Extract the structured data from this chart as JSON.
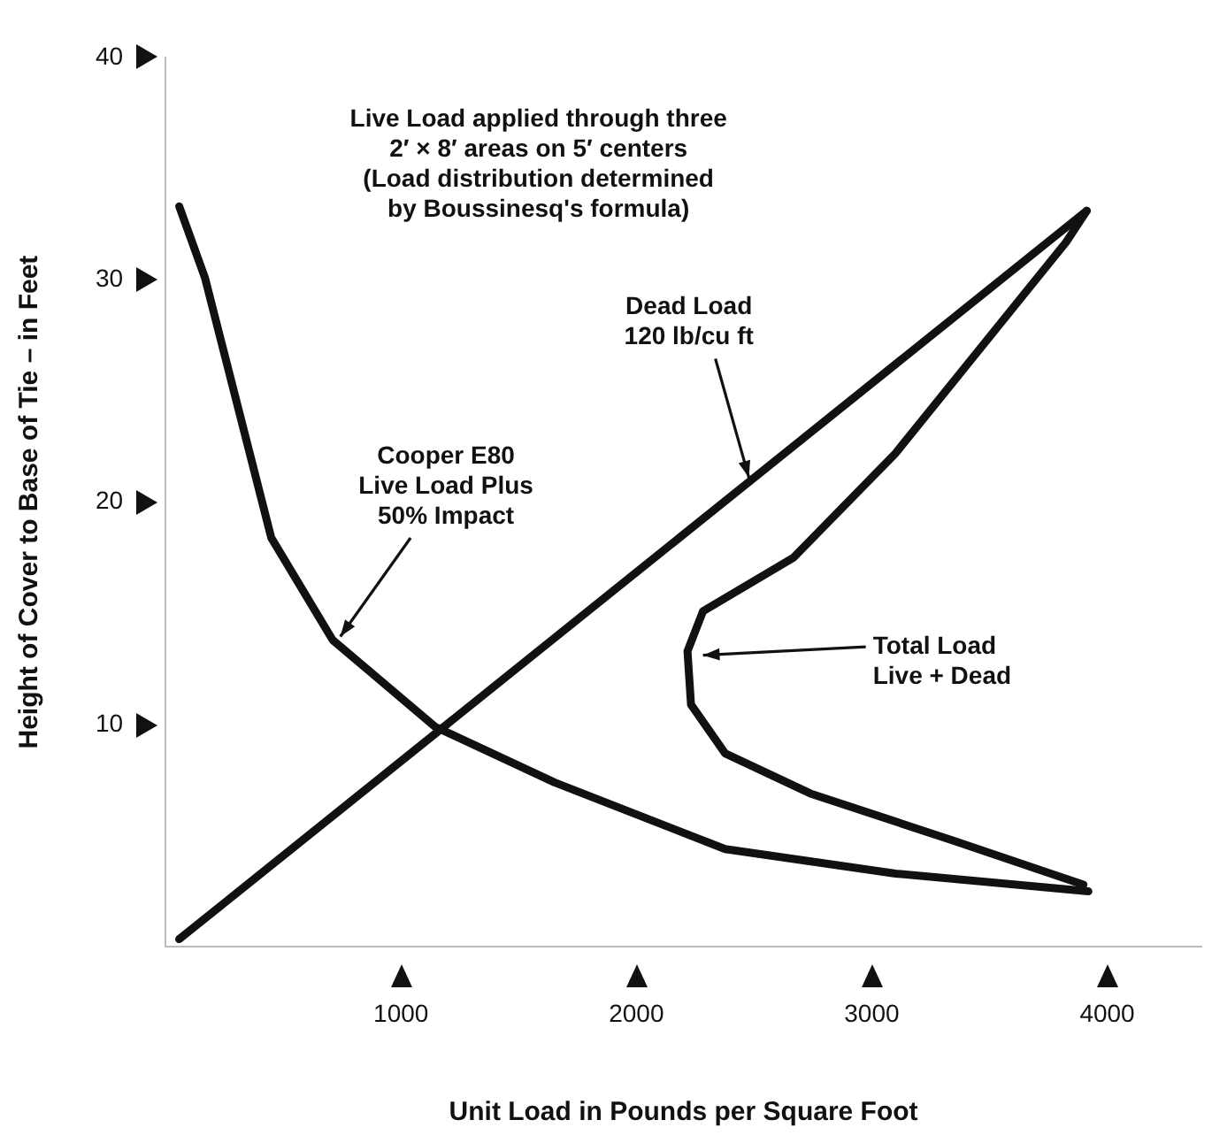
{
  "chart_data": {
    "type": "line",
    "xlabel": "Unit Load in Pounds per Square Foot",
    "ylabel": "Height of Cover to Base of Tie – in Feet",
    "xlim": [
      0,
      4400
    ],
    "ylim": [
      0,
      40
    ],
    "xticks": [
      1000,
      2000,
      3000,
      4000
    ],
    "yticks": [
      10,
      20,
      30,
      40
    ],
    "grid": false,
    "legend": false,
    "marker": "none",
    "line_style": "solid",
    "series": [
      {
        "color": "#111111",
        "x": [
          58,
          167,
          449,
          710,
          1145,
          1652,
          2377,
          3101,
          3920
        ],
        "values": [
          33.3,
          30.1,
          18.4,
          13.8,
          9.9,
          7.4,
          4.4,
          3.3,
          2.5
        ]
      },
      {
        "color": "#111111",
        "x": [
          58,
          3913
        ],
        "values": [
          0.35,
          33.1
        ]
      },
      {
        "color": "#111111",
        "x": [
          3913,
          3826,
          3101,
          2667,
          2283,
          2217,
          2232,
          2377,
          2739,
          3341,
          3899
        ],
        "values": [
          33.1,
          31.7,
          22.2,
          17.5,
          15.1,
          13.3,
          10.9,
          8.7,
          6.9,
          4.8,
          2.8
        ]
      }
    ],
    "annotations": [
      "Live Load applied through three\n2′ × 8′ areas on 5′ centers\n(Load distribution determined\nby Boussinesq's formula)",
      {
        "text": "Cooper E80\nLive Load Plus\n50% Impact",
        "x": 725,
        "y": 13.7
      },
      {
        "text": "Dead Load\n120 lb/cu ft",
        "x": 2486,
        "y": 20.8
      },
      {
        "text": "Total Load\nLive + Dead",
        "x": 2253,
        "y": 13.1
      }
    ]
  }
}
